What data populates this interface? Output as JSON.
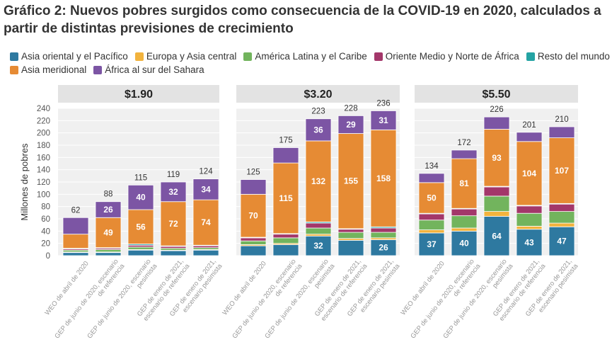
{
  "title": "Gráfico 2: Nuevos pobres surgidos como consecuencia de la COVID-19 en 2020, calculados a partir de distintas previsiones de crecimiento",
  "chart_data": {
    "type": "bar",
    "stacked": true,
    "ylabel": "Millones de pobres",
    "ylim": [
      0,
      240
    ],
    "yticks": [
      0,
      20,
      40,
      60,
      80,
      100,
      120,
      140,
      160,
      180,
      200,
      220,
      240
    ],
    "grid": true,
    "legend_position": "top",
    "categories": [
      [
        "WEO de abril de 2020"
      ],
      [
        "GEP de junio de 2020, escenario",
        "de referencia"
      ],
      [
        "GEP de junio de 2020, escenario",
        "pesimista"
      ],
      [
        "GEP de enero de 2021,",
        "escenario de referencia"
      ],
      [
        "GEP de enero de 2021,",
        "escenario pesimista"
      ]
    ],
    "series": [
      {
        "name": "Asia oriental y el Pacífico",
        "color": "#2e79a0"
      },
      {
        "name": "Europa y Asia central",
        "color": "#f2b33d"
      },
      {
        "name": "América Latina y el Caribe",
        "color": "#72b45d"
      },
      {
        "name": "Oriente Medio y Norte de África",
        "color": "#a3376a"
      },
      {
        "name": "Resto del mundo",
        "color": "#24a3a3"
      },
      {
        "name": "Asia meridional",
        "color": "#e68b34"
      },
      {
        "name": "África al sur del Sahara",
        "color": "#7c55a4"
      }
    ],
    "panels": [
      {
        "title": "$1.90",
        "totals": [
          "62",
          "88",
          "115",
          "119",
          "124"
        ],
        "bars": [
          {
            "values": [
              5,
              1,
              3,
              2,
              1,
              23,
              27
            ],
            "labels": [
              null,
              null,
              null,
              null,
              null,
              null,
              null
            ]
          },
          {
            "values": [
              5,
              1,
              4,
              2,
              1,
              49,
              26
            ],
            "labels": [
              null,
              null,
              null,
              null,
              null,
              "49",
              "26"
            ]
          },
          {
            "values": [
              9,
              1,
              4,
              3,
              2,
              56,
              40
            ],
            "labels": [
              null,
              null,
              null,
              null,
              null,
              "56",
              "40"
            ]
          },
          {
            "values": [
              8,
              1,
              3,
              3,
              1,
              72,
              32
            ],
            "labels": [
              null,
              null,
              null,
              null,
              null,
              "72",
              "32"
            ]
          },
          {
            "values": [
              9,
              1,
              3,
              3,
              1,
              74,
              34
            ],
            "labels": [
              null,
              null,
              null,
              null,
              null,
              "74",
              "34"
            ]
          }
        ]
      },
      {
        "title": "$3.20",
        "totals": [
          "125",
          "175",
          "223",
          "228",
          "236"
        ],
        "bars": [
          {
            "values": [
              16,
              2,
              6,
              5,
              1,
              70,
              24
            ],
            "labels": [
              null,
              null,
              null,
              null,
              null,
              "70",
              null
            ]
          },
          {
            "values": [
              18,
              2,
              9,
              6,
              1,
              115,
              25
            ],
            "labels": [
              null,
              null,
              null,
              null,
              null,
              "115",
              null
            ]
          },
          {
            "values": [
              32,
              3,
              10,
              8,
              2,
              132,
              36
            ],
            "labels": [
              "32",
              null,
              null,
              null,
              null,
              "132",
              "36"
            ]
          },
          {
            "values": [
              25,
              3,
              10,
              5,
              1,
              155,
              29
            ],
            "labels": [
              null,
              null,
              null,
              null,
              null,
              "155",
              "29"
            ]
          },
          {
            "values": [
              26,
              3,
              9,
              7,
              2,
              158,
              31
            ],
            "labels": [
              "26",
              null,
              null,
              null,
              null,
              "158",
              "31"
            ]
          }
        ]
      },
      {
        "title": "$5.50",
        "totals": [
          "134",
          "172",
          "226",
          "201",
          "210"
        ],
        "bars": [
          {
            "values": [
              37,
              5,
              16,
              10,
              1,
              50,
              15
            ],
            "labels": [
              "37",
              null,
              null,
              null,
              null,
              "50",
              null
            ]
          },
          {
            "values": [
              40,
              5,
              20,
              11,
              1,
              81,
              14
            ],
            "labels": [
              "40",
              null,
              null,
              null,
              null,
              "81",
              null
            ]
          },
          {
            "values": [
              64,
              8,
              25,
              15,
              1,
              93,
              20
            ],
            "labels": [
              "64",
              null,
              null,
              null,
              null,
              "93",
              null
            ]
          },
          {
            "values": [
              43,
              5,
              21,
              12,
              1,
              104,
              15
            ],
            "labels": [
              "43",
              null,
              null,
              null,
              null,
              "104",
              null
            ]
          },
          {
            "values": [
              47,
              6,
              19,
              12,
              1,
              107,
              18
            ],
            "labels": [
              "47",
              null,
              null,
              null,
              null,
              "107",
              null
            ]
          }
        ]
      }
    ]
  }
}
